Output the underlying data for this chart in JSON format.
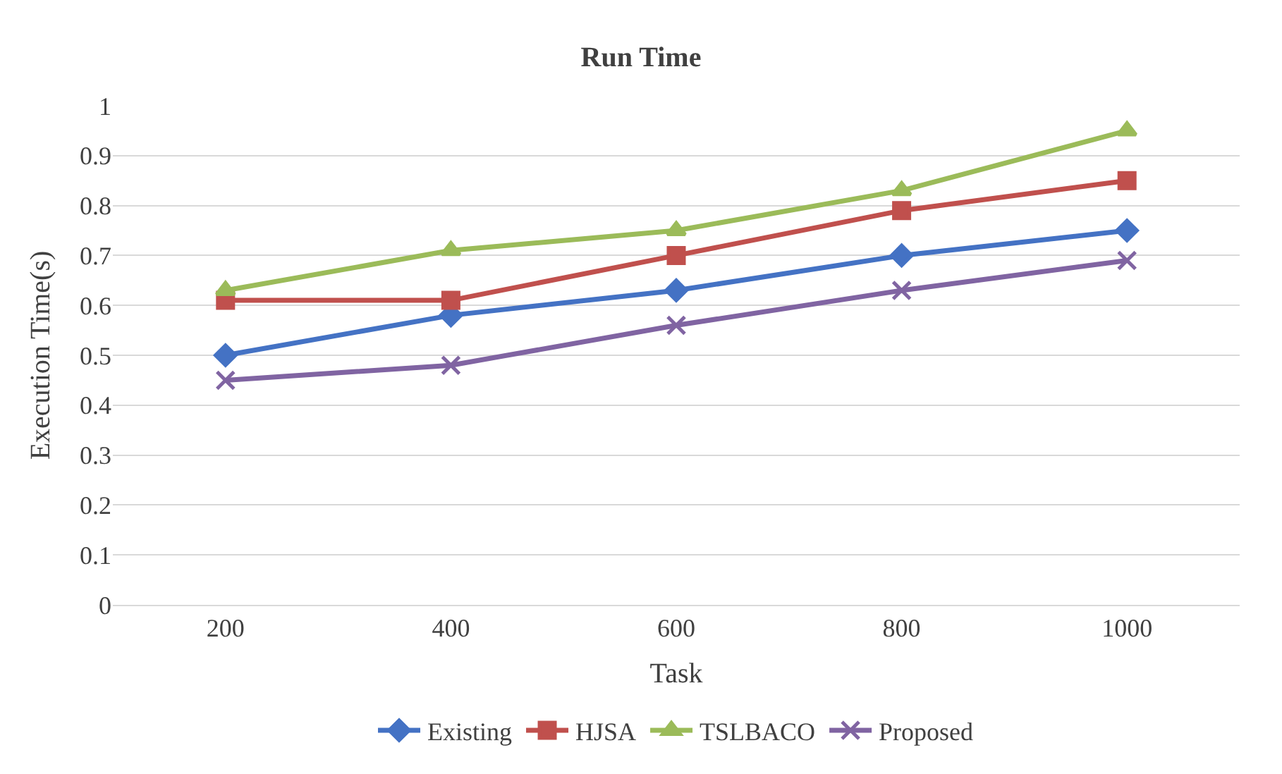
{
  "chart_data": {
    "type": "line",
    "title": "Run Time",
    "xlabel": "Task",
    "ylabel": "Execution Time(s)",
    "categories": [
      "200",
      "400",
      "600",
      "800",
      "1000"
    ],
    "series": [
      {
        "name": "Existing",
        "color": "#4472c4",
        "marker": "diamond",
        "values": [
          0.5,
          0.58,
          0.63,
          0.7,
          0.75
        ]
      },
      {
        "name": "HJSA",
        "color": "#c0504d",
        "marker": "square",
        "values": [
          0.61,
          0.61,
          0.7,
          0.79,
          0.85
        ]
      },
      {
        "name": "TSLBACO",
        "color": "#9bbb59",
        "marker": "triangle",
        "values": [
          0.63,
          0.71,
          0.75,
          0.83,
          0.95
        ]
      },
      {
        "name": "Proposed",
        "color": "#8064a2",
        "marker": "cross",
        "values": [
          0.45,
          0.48,
          0.56,
          0.63,
          0.69
        ]
      }
    ],
    "ylim": [
      0,
      1
    ],
    "yticks": [
      0,
      0.1,
      0.2,
      0.3,
      0.4,
      0.5,
      0.6,
      0.7,
      0.8,
      0.9,
      1
    ],
    "grid": "y",
    "legend": "bottom",
    "line_style": "solid"
  }
}
